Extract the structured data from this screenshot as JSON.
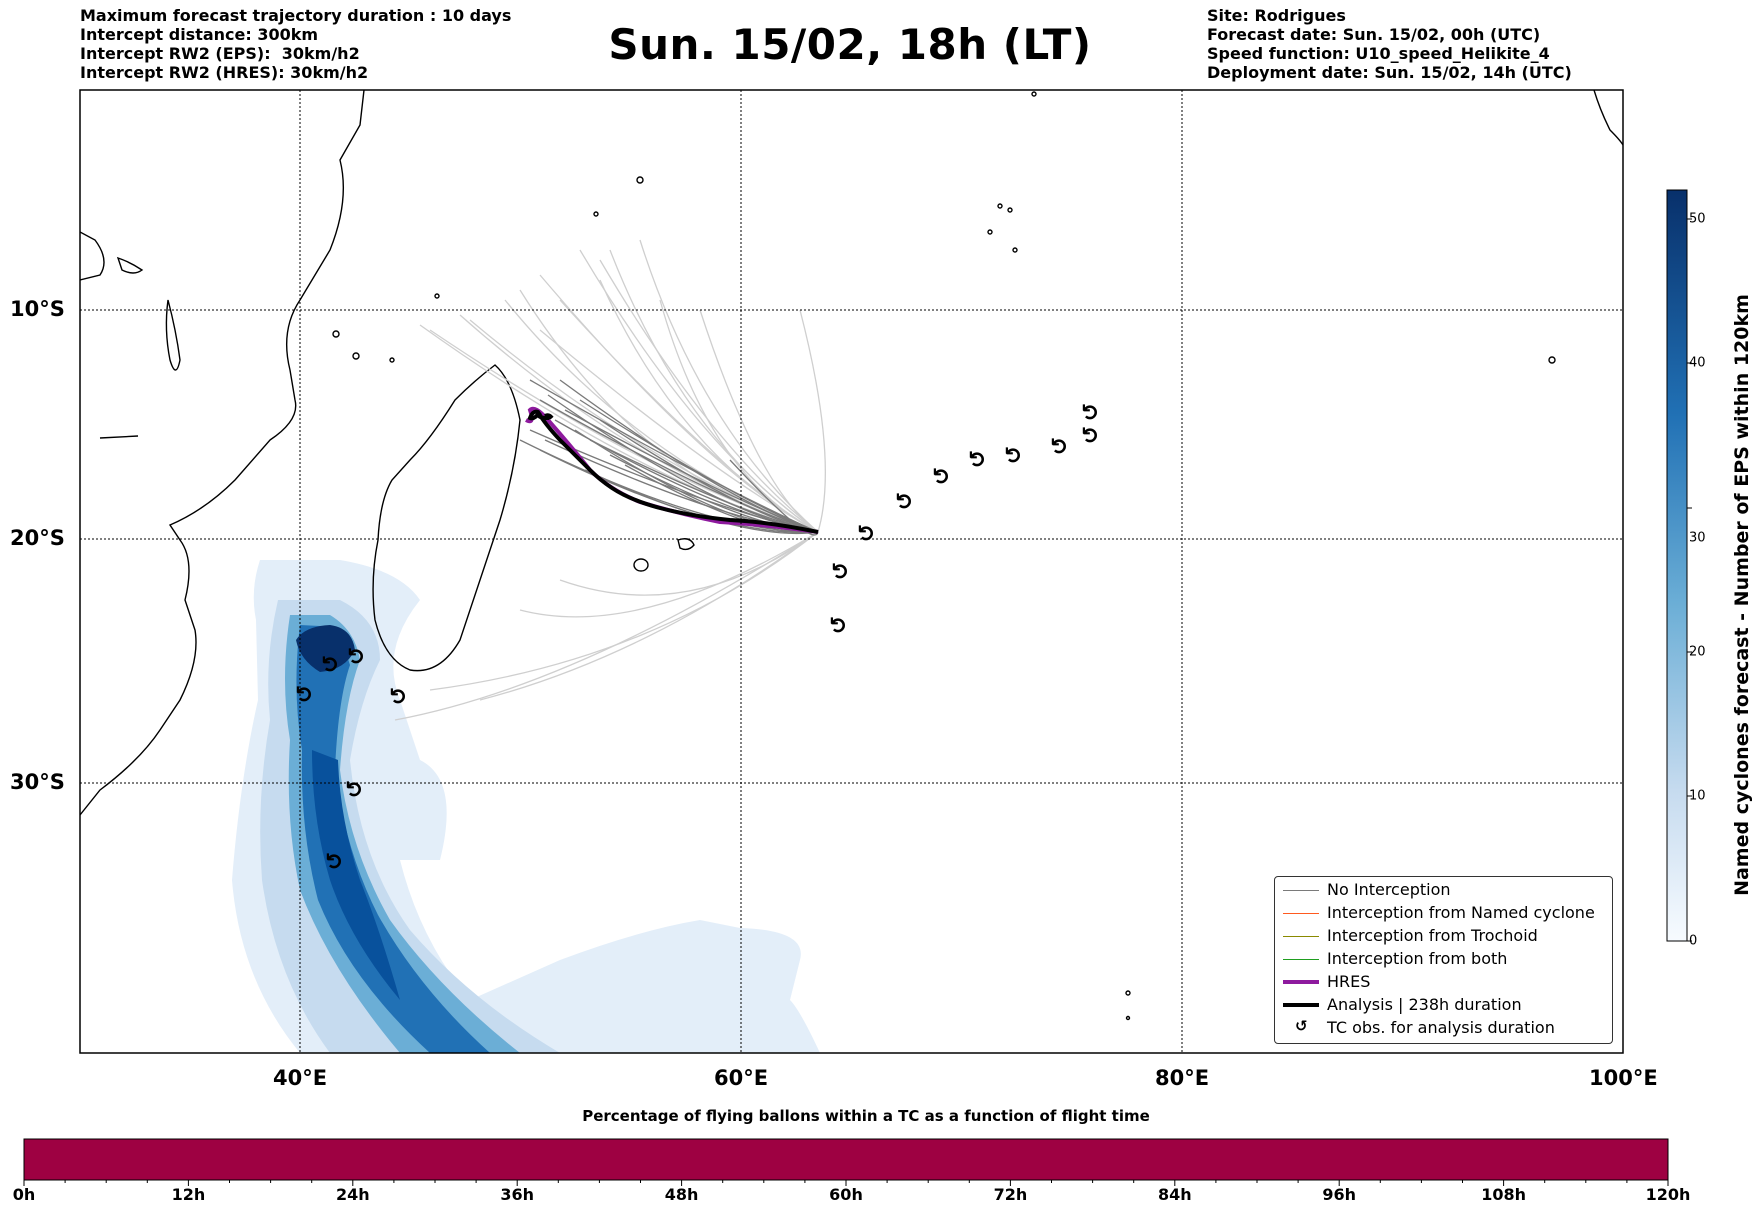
{
  "header": {
    "left_lines": [
      "Maximum forecast trajectory duration : 10 days",
      "Intercept distance: 300km",
      "Intercept RW2 (EPS):  30km/h2",
      "Intercept RW2 (HRES): 30km/h2"
    ],
    "title": "Sun. 15/02, 18h (LT)",
    "right_lines": [
      "Site: Rodrigues",
      "Forecast date: Sun. 15/02, 00h (UTC)",
      "Speed function: U10_speed_Helikite_4",
      "Deployment date: Sun. 15/02, 14h (UTC)"
    ]
  },
  "map": {
    "lat_labels": [
      "10°S",
      "20°S",
      "30°S"
    ],
    "lon_labels": [
      "40°E",
      "60°E",
      "80°E",
      "100°E"
    ],
    "tc_symbol": "↺",
    "colors": {
      "no_interception": "#7a7a7a",
      "named_cyclone": "#ff5a1f",
      "trochoid": "#8a8a00",
      "both": "#1f9e1f",
      "hres": "#8e1a9e",
      "analysis": "#000000",
      "density_dark": "#08306b",
      "density_light": "#deebf7"
    }
  },
  "legend": {
    "items": [
      {
        "label": "No Interception",
        "color": "#7a7a7a",
        "kind": "line"
      },
      {
        "label": "Interception from Named cyclone",
        "color": "#ff5a1f",
        "kind": "line"
      },
      {
        "label": "Interception from Trochoid",
        "color": "#8a8a00",
        "kind": "line"
      },
      {
        "label": "Interception from both",
        "color": "#1f9e1f",
        "kind": "line"
      },
      {
        "label": "HRES",
        "color": "#8e1a9e",
        "kind": "thick"
      },
      {
        "label": "Analysis | 238h duration",
        "color": "#000000",
        "kind": "thick"
      },
      {
        "label": "TC obs. for analysis duration",
        "color": "#000000",
        "kind": "symbol"
      }
    ]
  },
  "colorbar": {
    "label": "Named cyclones forecast - Number of EPS within 120km",
    "ticks": [
      "0",
      "10",
      "20",
      "30",
      "40",
      "50"
    ],
    "range": [
      0,
      52
    ]
  },
  "bottom_bar": {
    "title": "Percentage of flying ballons within a TC as a function of flight time",
    "ticks": [
      "0h",
      "12h",
      "24h",
      "36h",
      "48h",
      "60h",
      "72h",
      "84h",
      "96h",
      "108h",
      "120h"
    ],
    "fill_color": "#9e0142",
    "fill_fraction": 1.0
  }
}
